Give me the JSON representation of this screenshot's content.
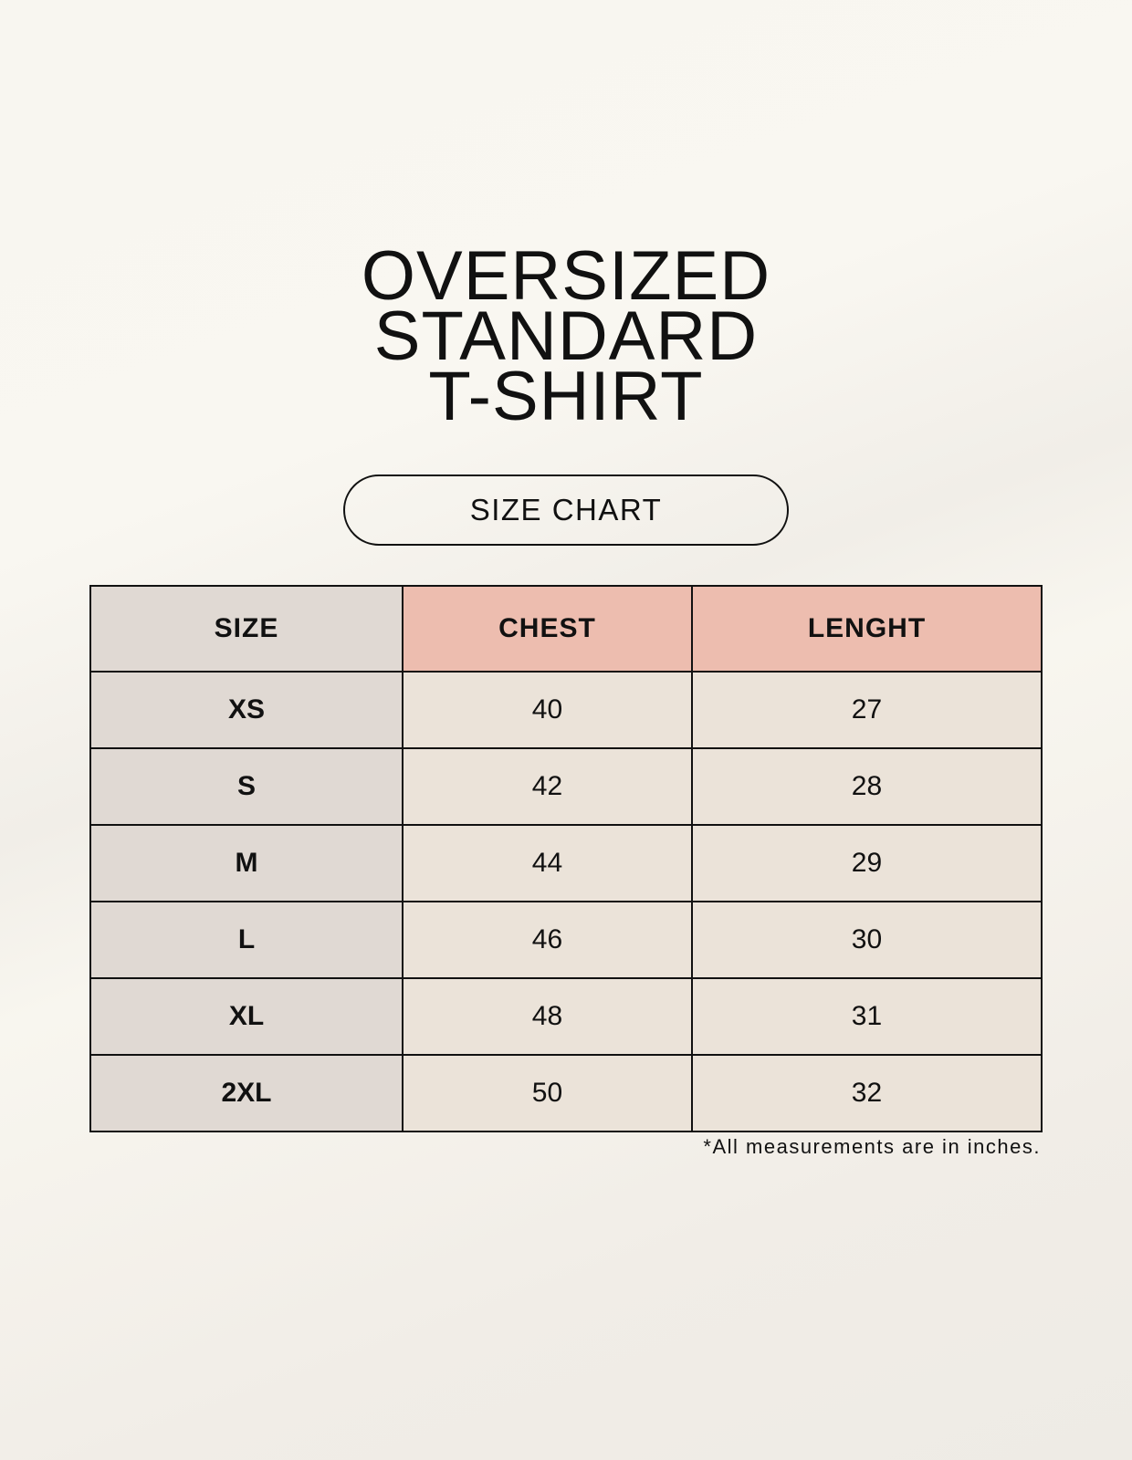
{
  "title_lines": [
    "OVERSIZED",
    "STANDARD",
    "T-SHIRT"
  ],
  "badge": "SIZE CHART",
  "table": {
    "headers": [
      "SIZE",
      "CHEST",
      "LENGHT"
    ],
    "rows": [
      [
        "XS",
        "40",
        "27"
      ],
      [
        "S",
        "42",
        "28"
      ],
      [
        "M",
        "44",
        "29"
      ],
      [
        "L",
        "46",
        "30"
      ],
      [
        "XL",
        "48",
        "31"
      ],
      [
        "2XL",
        "50",
        "32"
      ]
    ]
  },
  "footnote": "*All measurements are in inches.",
  "colors": {
    "header_highlight": "#edbdaf",
    "size_column": "#e0d9d3",
    "body_cells": "#ebe3d9"
  }
}
